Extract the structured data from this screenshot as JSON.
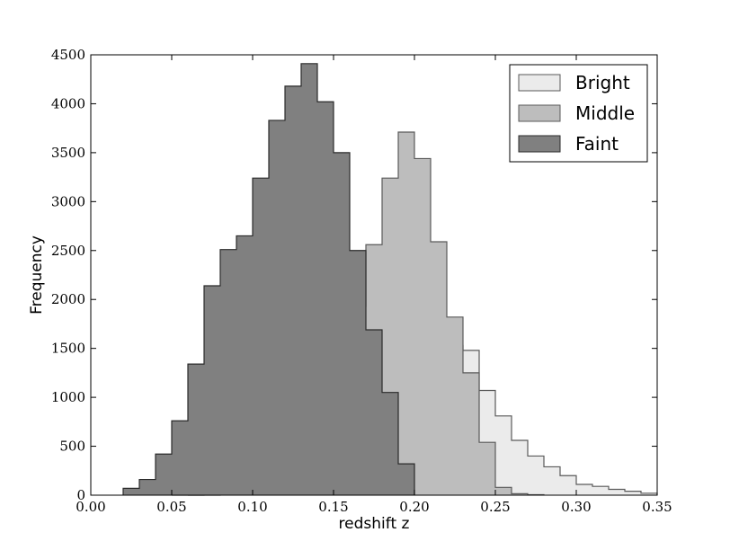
{
  "chart_data": {
    "type": "histogram",
    "xlabel": "redshift z",
    "ylabel": "Frequency",
    "xlim": [
      0.0,
      0.35
    ],
    "ylim": [
      0,
      4500
    ],
    "xticks": [
      "0.00",
      "0.05",
      "0.10",
      "0.15",
      "0.20",
      "0.25",
      "0.30",
      "0.35"
    ],
    "yticks": [
      "0",
      "500",
      "1000",
      "1500",
      "2000",
      "2500",
      "3000",
      "3500",
      "4000",
      "4500"
    ],
    "bin_width": 0.01,
    "grid": false,
    "legend_position": "top-right",
    "series": [
      {
        "name": "Bright",
        "color": "#ebebeb",
        "edge": "#5a5a5a",
        "x_start": 0.05,
        "values": [
          0,
          0,
          0,
          5,
          10,
          20,
          50,
          80,
          110,
          150,
          200,
          270,
          330,
          510,
          800,
          1180,
          1420,
          1530,
          1480,
          1070,
          810,
          560,
          400,
          290,
          200,
          110,
          90,
          60,
          40,
          20
        ]
      },
      {
        "name": "Middle",
        "color": "#bdbdbd",
        "edge": "#5a5a5a",
        "x_start": 0.06,
        "values": [
          0,
          20,
          70,
          110,
          150,
          250,
          450,
          610,
          960,
          1360,
          1930,
          2560,
          3240,
          3710,
          3440,
          2590,
          1820,
          1250,
          540,
          80,
          15,
          5
        ]
      },
      {
        "name": "Faint",
        "color": "#808080",
        "edge": "#2a2a2a",
        "x_start": 0.02,
        "values": [
          70,
          160,
          420,
          760,
          1340,
          2140,
          2510,
          2650,
          3240,
          3830,
          4180,
          4410,
          4020,
          3500,
          2500,
          1690,
          1050,
          320
        ]
      }
    ]
  }
}
